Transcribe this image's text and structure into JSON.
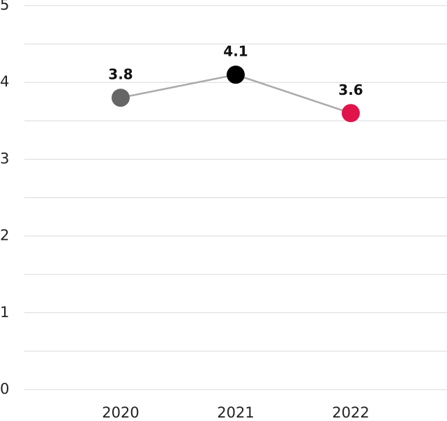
{
  "chart_data": {
    "type": "line",
    "categories": [
      "2020",
      "2021",
      "2022"
    ],
    "series": [
      {
        "values": [
          3.8,
          4.1,
          3.6
        ],
        "color": "#aaaaaa",
        "point_colors": [
          "#666666",
          "#000000",
          "#e0134a"
        ]
      }
    ],
    "ylim": [
      0,
      5
    ],
    "yticks": [
      0,
      1,
      2,
      3,
      4,
      5
    ],
    "minor_yticks": [
      0.5,
      1.5,
      2.5,
      3.5,
      4.5
    ],
    "grid": true
  }
}
